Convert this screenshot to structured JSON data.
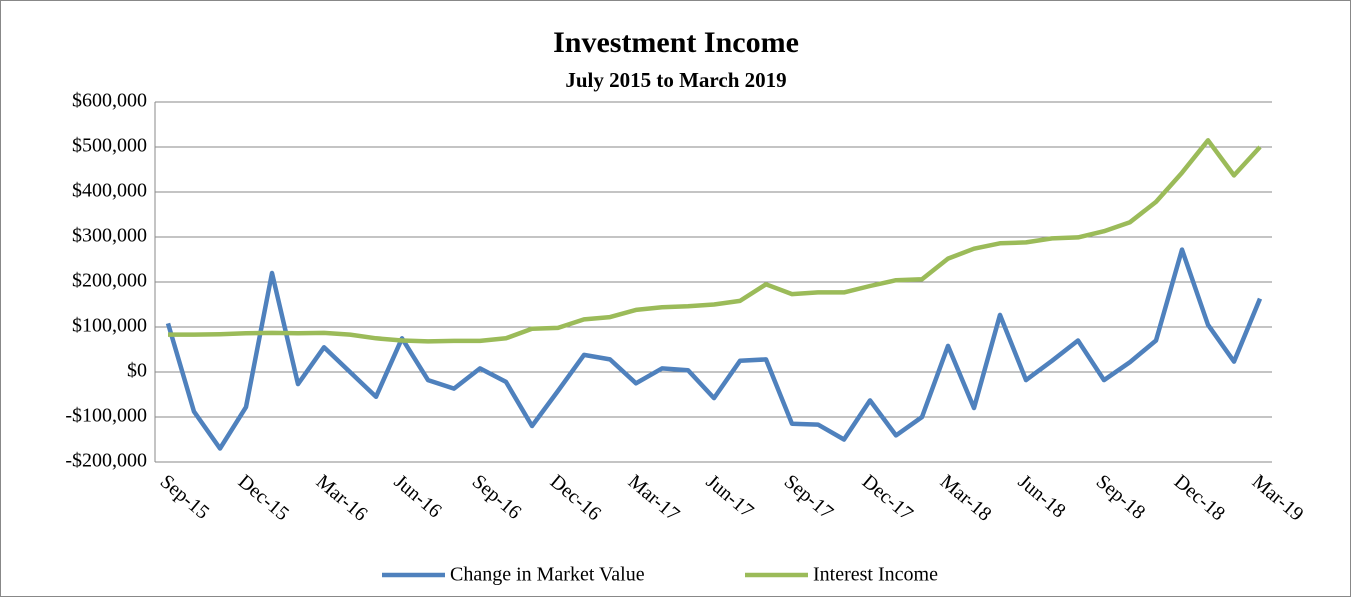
{
  "chart_data": {
    "type": "line",
    "title": "Investment Income",
    "subtitle": "July 2015 to March 2019",
    "categories": [
      "Sep-15",
      null,
      null,
      "Dec-15",
      null,
      null,
      "Mar-16",
      null,
      null,
      "Jun-16",
      null,
      null,
      "Sep-16",
      null,
      null,
      "Dec-16",
      null,
      null,
      "Mar-17",
      null,
      null,
      "Jun-17",
      null,
      null,
      "Sep-17",
      null,
      null,
      "Dec-17",
      null,
      null,
      "Mar-18",
      null,
      null,
      "Jun-18",
      null,
      null,
      "Sep-18",
      null,
      null,
      "Dec-18",
      null,
      null,
      "Mar-19"
    ],
    "series": [
      {
        "name": "Change in Market Value",
        "color": "#4f81bd",
        "values": [
          108000,
          -88000,
          -170000,
          -78000,
          220000,
          -27000,
          55000,
          0,
          -55000,
          75000,
          -18000,
          -37000,
          8000,
          -22000,
          -120000,
          -42000,
          38000,
          28000,
          -25000,
          8000,
          4000,
          -58000,
          25000,
          28000,
          -115000,
          -117000,
          -150000,
          -63000,
          -141000,
          -100000,
          58000,
          -80000,
          127000,
          -18000,
          25000,
          70000,
          -18000,
          22000,
          70000,
          272000,
          105000,
          23000,
          163000
        ]
      },
      {
        "name": "Interest Income",
        "color": "#9bbb59",
        "values": [
          83000,
          83000,
          84000,
          86000,
          87000,
          86000,
          87000,
          83000,
          75000,
          70000,
          68000,
          69000,
          69000,
          75000,
          96000,
          98000,
          117000,
          122000,
          138000,
          144000,
          146000,
          150000,
          158000,
          195000,
          173000,
          177000,
          177000,
          191000,
          204000,
          206000,
          252000,
          274000,
          286000,
          288000,
          297000,
          299000,
          313000,
          333000,
          378000,
          443000,
          515000,
          437000,
          500000
        ]
      }
    ],
    "ylim": [
      -200000,
      600000
    ],
    "yticks": [
      {
        "value": -200000,
        "label": "-$200,000"
      },
      {
        "value": -100000,
        "label": "-$100,000"
      },
      {
        "value": 0,
        "label": "$0"
      },
      {
        "value": 100000,
        "label": "$100,000"
      },
      {
        "value": 200000,
        "label": "$200,000"
      },
      {
        "value": 300000,
        "label": "$300,000"
      },
      {
        "value": 400000,
        "label": "$400,000"
      },
      {
        "value": 500000,
        "label": "$500,000"
      },
      {
        "value": 600000,
        "label": "$600,000"
      }
    ],
    "grid": true,
    "legend": "bottom"
  }
}
